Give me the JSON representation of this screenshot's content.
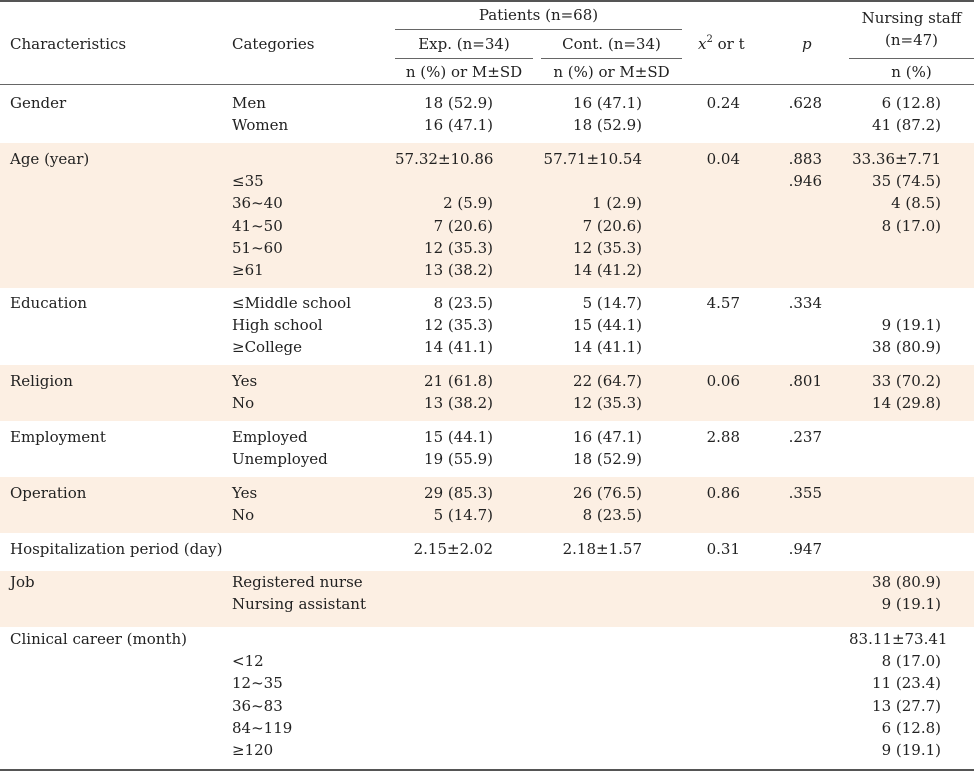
{
  "header": {
    "characteristics": "Characteristics",
    "categories": "Categories",
    "patients": "Patients (n=68)",
    "exp": "Exp. (n=34)",
    "cont": "Cont. (n=34)",
    "x2_symbol": "x",
    "x2_sup": "2",
    "x2_rest": " or t",
    "p": "p",
    "nursing_line1": "Nursing staff",
    "nursing_line2": "(n=47)",
    "exp_sub": "n (%) or M±SD",
    "cont_sub": "n (%) or M±SD",
    "nursing_sub": "n (%)"
  },
  "rows": [
    {
      "characteristic": "Gender",
      "categories": "Men\nWomen",
      "exp": "18 (52.9)\n16 (47.1)",
      "cont": "16 (47.1)\n18 (52.9)",
      "stat": "0.24",
      "p": ".628",
      "nursing": "6 (12.8)\n41 (87.2)"
    },
    {
      "characteristic": "Age (year)",
      "categories": "\n≤35\n36~40\n41~50\n51~60\n≥61",
      "exp": "57.32±10.86\n\n2 (5.9)\n7 (20.6)\n12 (35.3)\n13 (38.2)",
      "cont": "57.71±10.54\n\n1 (2.9)\n7 (20.6)\n12 (35.3)\n14 (41.2)",
      "stat": "0.04",
      "p": ".883\n.946",
      "nursing": "33.36±7.71\n35 (74.5)\n4 (8.5)\n8 (17.0)"
    },
    {
      "characteristic": "Education",
      "categories": "≤Middle school\nHigh school\n≥College",
      "exp": "8 (23.5)\n12 (35.3)\n14 (41.1)",
      "cont": "5 (14.7)\n15 (44.1)\n14 (41.1)",
      "stat": "4.57",
      "p": ".334",
      "nursing": "\n9 (19.1)\n38 (80.9)"
    },
    {
      "characteristic": "Religion",
      "categories": "Yes\nNo",
      "exp": "21 (61.8)\n13 (38.2)",
      "cont": "22 (64.7)\n12 (35.3)",
      "stat": "0.06",
      "p": ".801",
      "nursing": "33 (70.2)\n14 (29.8)"
    },
    {
      "characteristic": "Employment",
      "categories": "Employed\nUnemployed",
      "exp": "15 (44.1)\n19 (55.9)",
      "cont": "16 (47.1)\n18 (52.9)",
      "stat": "2.88",
      "p": ".237",
      "nursing": ""
    },
    {
      "characteristic": "Operation",
      "categories": "Yes\nNo",
      "exp": "29 (85.3)\n5 (14.7)",
      "cont": "26 (76.5)\n8 (23.5)",
      "stat": "0.86",
      "p": ".355",
      "nursing": ""
    },
    {
      "characteristic": "Hospitalization period (day)",
      "categories": "",
      "exp": "2.15±2.02",
      "cont": "2.18±1.57",
      "stat": "0.31",
      "p": ".947",
      "nursing": ""
    },
    {
      "characteristic": "Job",
      "categories": "Registered nurse\nNursing assistant",
      "exp": "",
      "cont": "",
      "stat": "",
      "p": "",
      "nursing": "38 (80.9)\n9 (19.1)"
    },
    {
      "characteristic": "Clinical career (month)",
      "categories": "\n<12\n12~35\n36~83\n84~119\n≥120",
      "exp": "",
      "cont": "",
      "stat": "",
      "p": "",
      "nursing": "83.11±73.41\n8 (17.0)\n11 (23.4)\n13 (27.7)\n6 (12.8)\n9 (19.1)"
    }
  ]
}
